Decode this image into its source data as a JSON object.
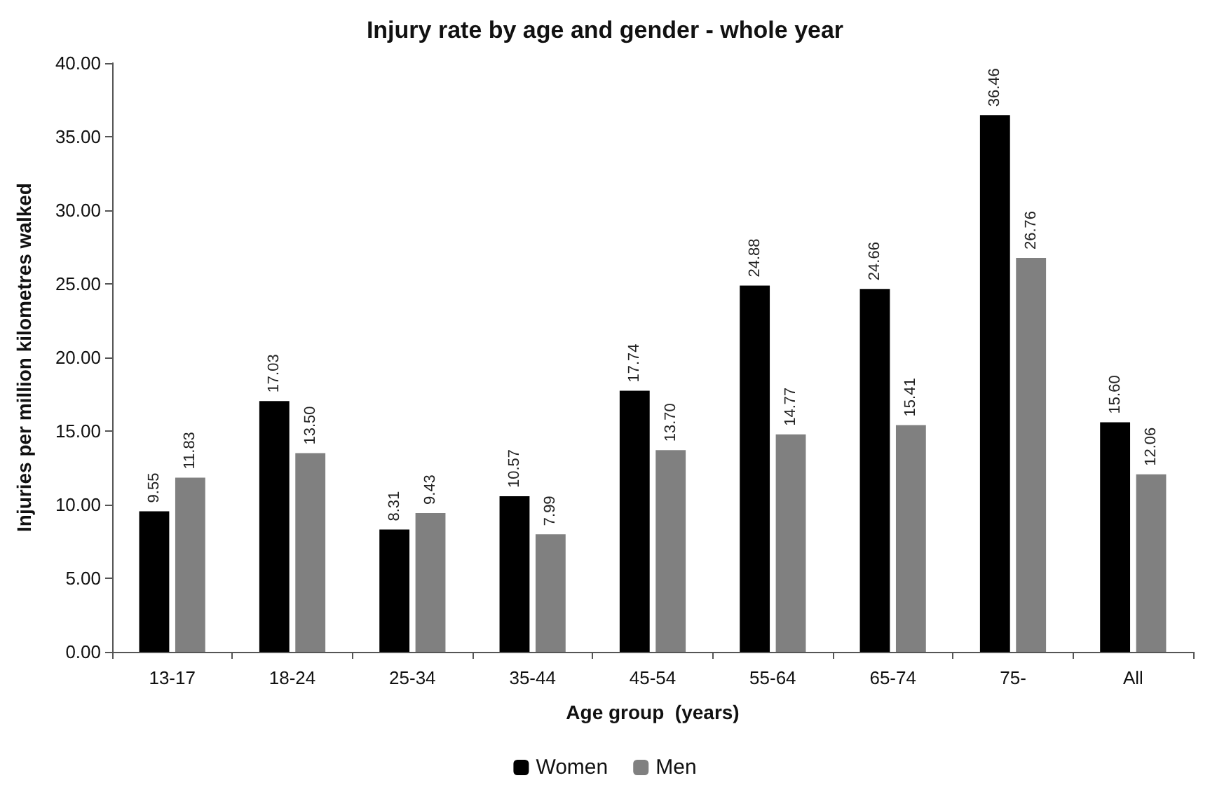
{
  "chart_data": {
    "type": "bar",
    "title": "Injury rate by age and gender - whole year",
    "xlabel": "Age group  (years)",
    "ylabel": "Injuries per million kilometres walked",
    "categories": [
      "13-17",
      "18-24",
      "25-34",
      "35-44",
      "45-54",
      "55-64",
      "65-74",
      "75-",
      "All"
    ],
    "series": [
      {
        "name": "Women",
        "color": "#000000",
        "values": [
          9.55,
          17.03,
          8.31,
          10.57,
          17.74,
          24.88,
          24.66,
          36.46,
          15.6
        ],
        "value_labels": [
          "9.55",
          "17.03",
          "8.31",
          "10.57",
          "17.74",
          "24.88",
          "24.66",
          "36.46",
          "15.60"
        ]
      },
      {
        "name": "Men",
        "color": "#808080",
        "values": [
          11.83,
          13.5,
          9.43,
          7.99,
          13.7,
          14.77,
          15.41,
          26.76,
          12.06
        ],
        "value_labels": [
          "11.83",
          "13.50",
          "9.43",
          "7.99",
          "13.70",
          "14.77",
          "15.41",
          "26.76",
          "12.06"
        ]
      }
    ],
    "ylim": [
      0,
      40
    ],
    "yticks": [
      {
        "value": 0,
        "label": "0.00"
      },
      {
        "value": 5,
        "label": "5.00"
      },
      {
        "value": 10,
        "label": "10.00"
      },
      {
        "value": 15,
        "label": "15.00"
      },
      {
        "value": 20,
        "label": "20.00"
      },
      {
        "value": 25,
        "label": "25.00"
      },
      {
        "value": 30,
        "label": "30.00"
      },
      {
        "value": 35,
        "label": "35.00"
      },
      {
        "value": 40,
        "label": "40.00"
      }
    ],
    "grid": false,
    "legend": "bottom"
  }
}
